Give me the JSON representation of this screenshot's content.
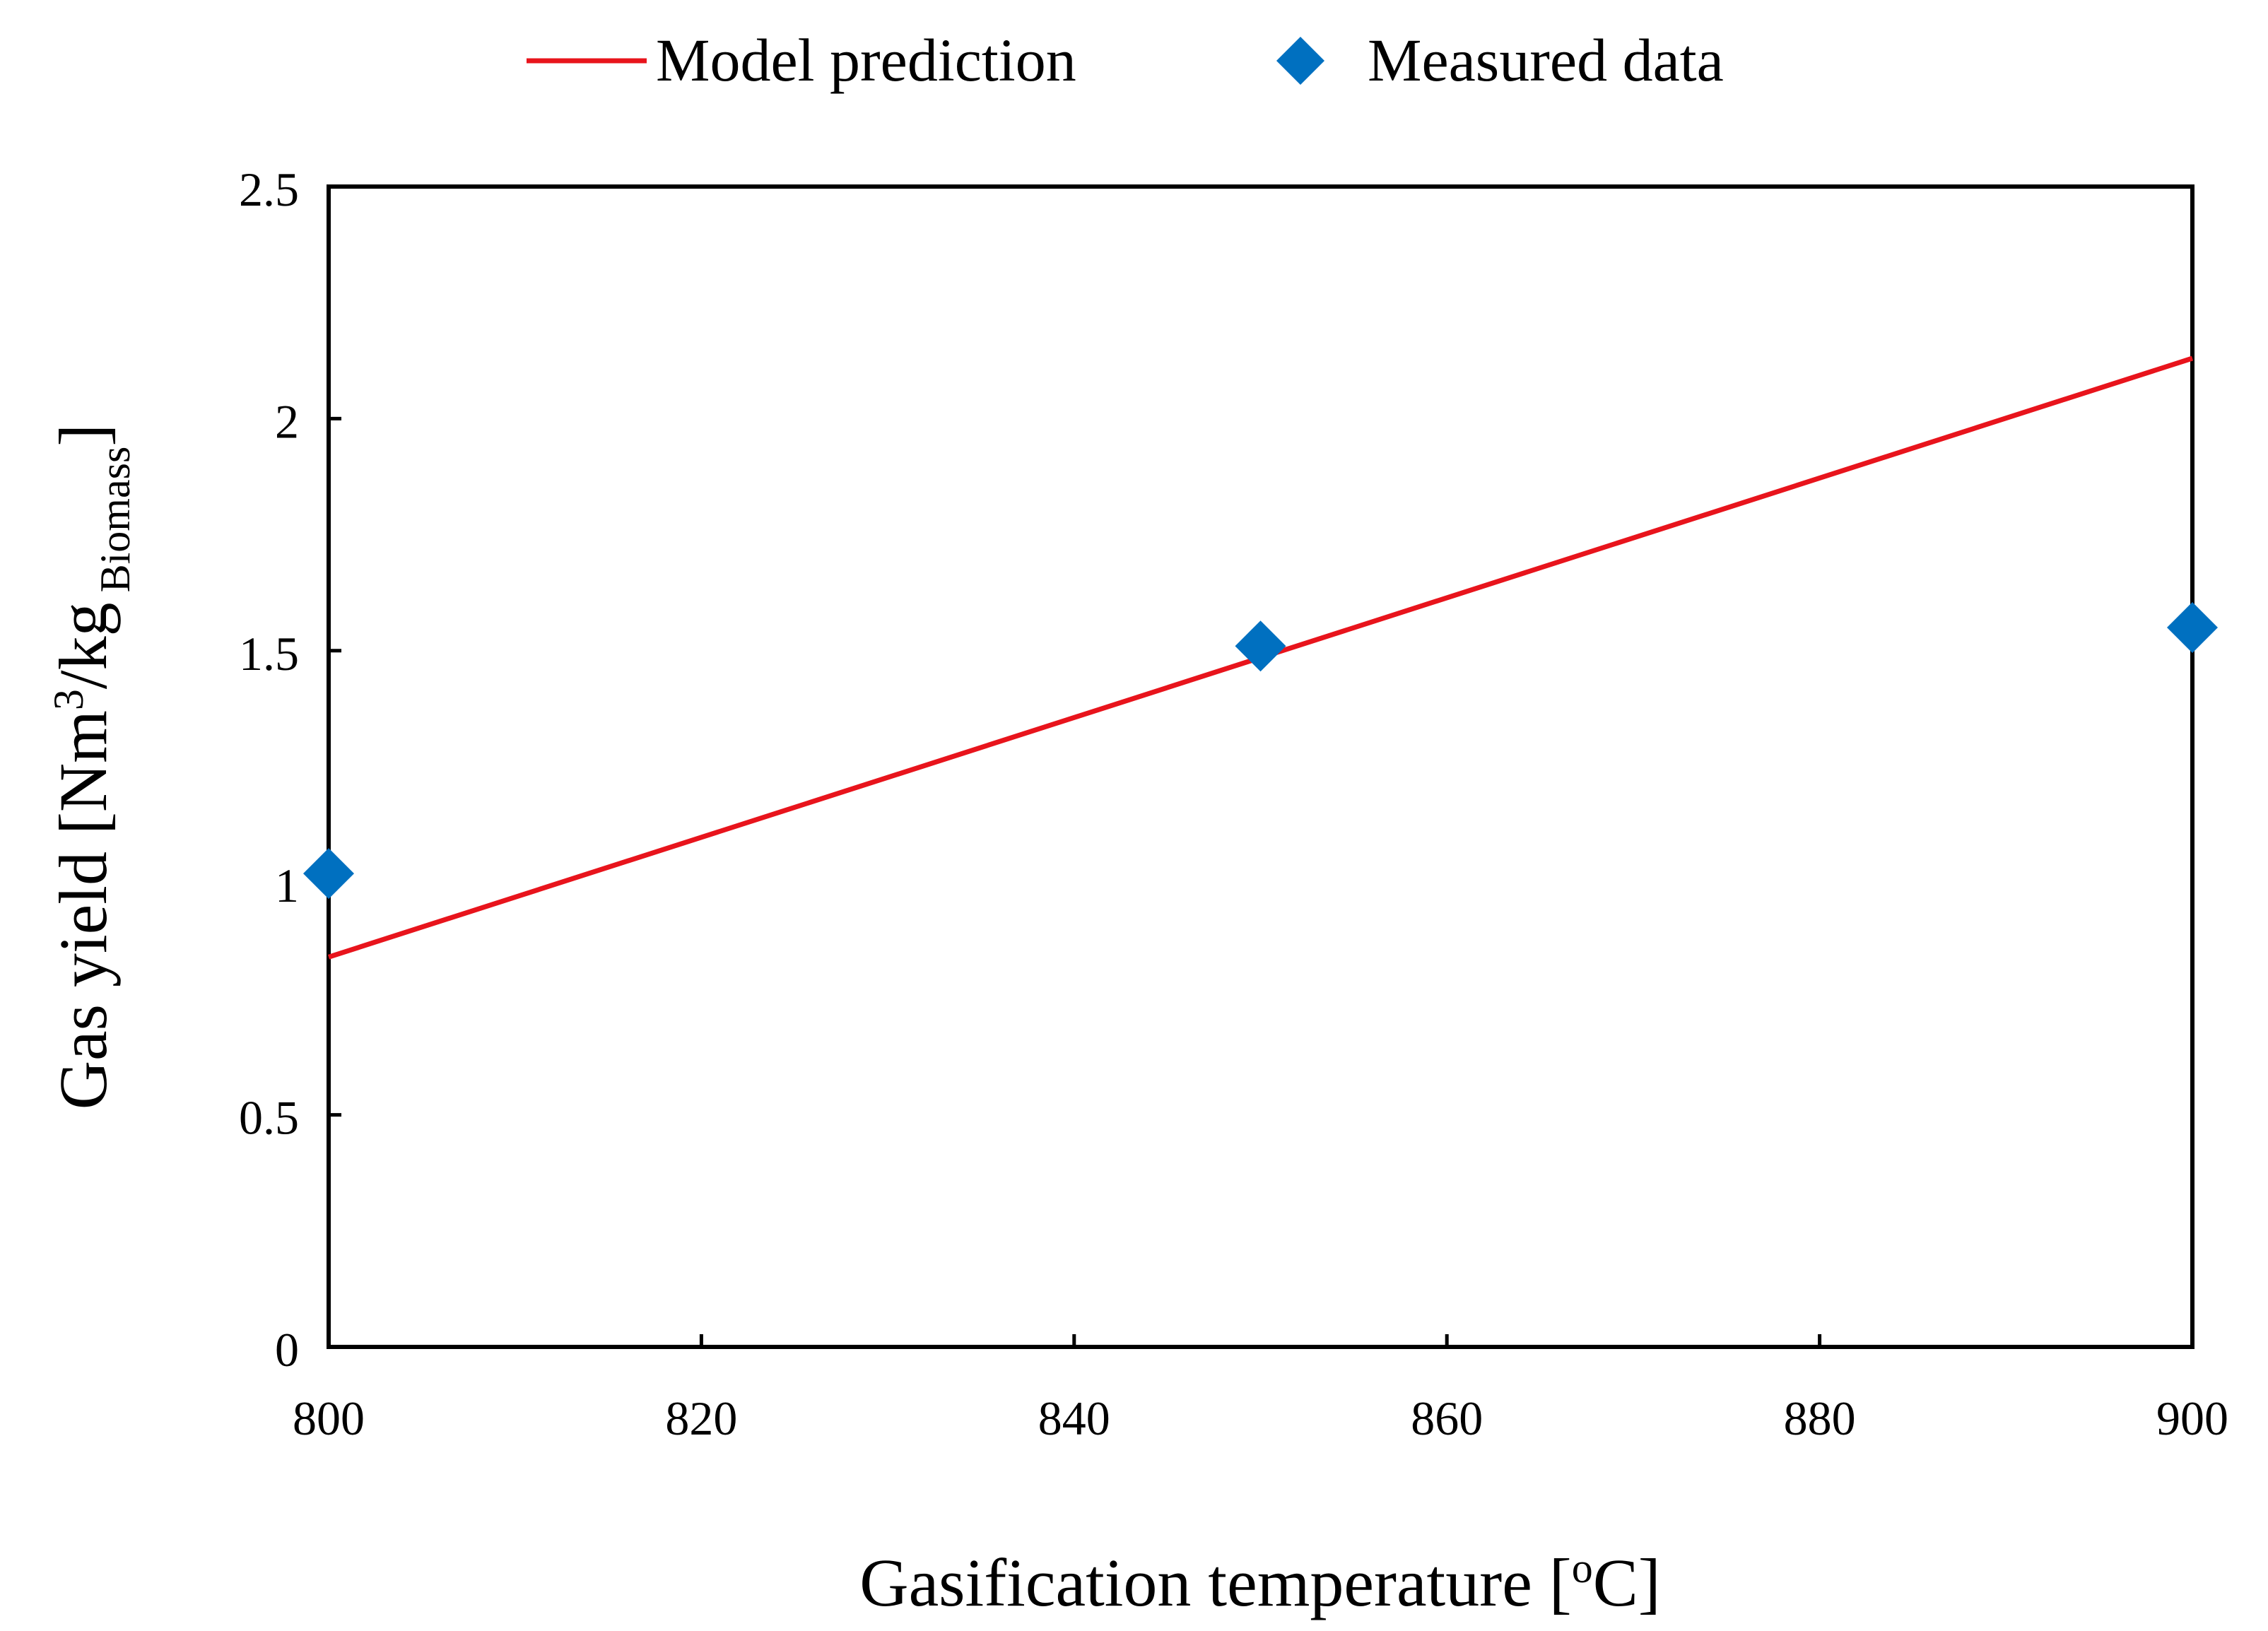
{
  "chart_data": {
    "type": "line",
    "xlabel": "Gasification temperature [",
    "xlabel_sup": "o",
    "xlabel_end": "C]",
    "ylabel": "Gas yield [Nm",
    "ylabel_sup": "3",
    "ylabel_mid": "/kg",
    "ylabel_sub": "Biomass",
    "ylabel_end": "]",
    "xlim": [
      800,
      900
    ],
    "ylim": [
      0,
      2.5
    ],
    "x_ticks": [
      {
        "value": 800,
        "label": "800"
      },
      {
        "value": 820,
        "label": "820"
      },
      {
        "value": 840,
        "label": "840"
      },
      {
        "value": 860,
        "label": "860"
      },
      {
        "value": 880,
        "label": "880"
      },
      {
        "value": 900,
        "label": "900"
      }
    ],
    "y_ticks": [
      {
        "value": 0,
        "label": "0"
      },
      {
        "value": 0.5,
        "label": "0.5"
      },
      {
        "value": 1,
        "label": "1"
      },
      {
        "value": 1.5,
        "label": "1.5"
      },
      {
        "value": 2,
        "label": "2"
      },
      {
        "value": 2.5,
        "label": "2.5"
      }
    ],
    "grid": false,
    "legend_position": "top",
    "series": [
      {
        "name": "Model prediction",
        "kind": "line",
        "color": "#e8141c",
        "x": [
          800,
          900
        ],
        "y": [
          0.84,
          2.13
        ]
      },
      {
        "name": "Measured data",
        "kind": "scatter",
        "marker": "diamond",
        "color": "#0070c0",
        "x": [
          800,
          850,
          900
        ],
        "y": [
          1.02,
          1.51,
          1.55
        ]
      }
    ]
  }
}
